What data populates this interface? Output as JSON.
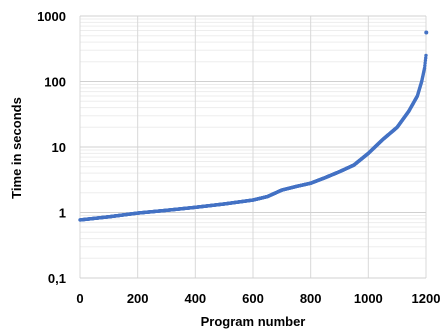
{
  "chart_data": {
    "type": "scatter",
    "xlabel": "Program number",
    "ylabel": "Time in seconds",
    "x_ticks": [
      "0",
      "200",
      "400",
      "600",
      "800",
      "1000",
      "1200"
    ],
    "y_ticks": [
      "0,1",
      "1",
      "10",
      "100",
      "1000"
    ],
    "xlim": [
      0,
      1200
    ],
    "ylim": [
      0.1,
      1000
    ],
    "y_scale": "log",
    "grid": true,
    "marker_color": "#4472C4",
    "profile": [
      {
        "x": 0,
        "y": 0.77
      },
      {
        "x": 100,
        "y": 0.86
      },
      {
        "x": 200,
        "y": 0.98
      },
      {
        "x": 300,
        "y": 1.08
      },
      {
        "x": 400,
        "y": 1.2
      },
      {
        "x": 500,
        "y": 1.35
      },
      {
        "x": 600,
        "y": 1.55
      },
      {
        "x": 650,
        "y": 1.75
      },
      {
        "x": 700,
        "y": 2.2
      },
      {
        "x": 750,
        "y": 2.5
      },
      {
        "x": 800,
        "y": 2.8
      },
      {
        "x": 850,
        "y": 3.4
      },
      {
        "x": 900,
        "y": 4.2
      },
      {
        "x": 950,
        "y": 5.3
      },
      {
        "x": 1000,
        "y": 8
      },
      {
        "x": 1050,
        "y": 13
      },
      {
        "x": 1100,
        "y": 20
      },
      {
        "x": 1140,
        "y": 35
      },
      {
        "x": 1170,
        "y": 60
      },
      {
        "x": 1185,
        "y": 100
      },
      {
        "x": 1195,
        "y": 160
      },
      {
        "x": 1200,
        "y": 250
      }
    ],
    "outliers": [
      {
        "x": 1201,
        "y": 560
      }
    ]
  }
}
